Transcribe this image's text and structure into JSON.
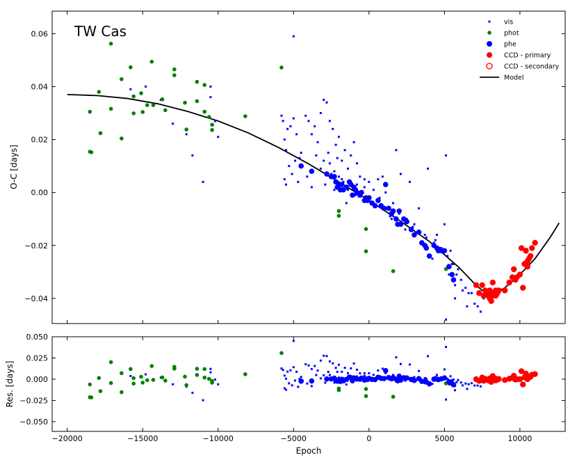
{
  "chart_data": [
    {
      "type": "scatter",
      "panel": "top",
      "title": "TW Cas",
      "xlabel": "",
      "ylabel": "O-C [days]",
      "xlim": [
        -21000,
        13000
      ],
      "ylim": [
        -0.0495,
        0.0685
      ],
      "xticks": [
        -20000,
        -15000,
        -10000,
        -5000,
        0,
        5000,
        10000
      ],
      "yticks": [
        -0.04,
        -0.02,
        0.0,
        0.02,
        0.04,
        0.06
      ],
      "ytick_labels": [
        "−0.04",
        "−0.02",
        "0.00",
        "0.02",
        "0.04",
        "0.06"
      ],
      "legend_position": "top-right",
      "legend": [
        {
          "label": "vis",
          "marker": "small-square",
          "color": "#0000ff"
        },
        {
          "label": "phot",
          "marker": "dot",
          "color": "#008000"
        },
        {
          "label": "phe",
          "marker": "dot",
          "color": "#0000ff"
        },
        {
          "label": "CCD - primary",
          "marker": "dot",
          "color": "#ff0000"
        },
        {
          "label": "CCD - secondary",
          "marker": "open-circle",
          "color": "#ff0000"
        },
        {
          "label": "Model",
          "marker": "line",
          "color": "#000000"
        }
      ],
      "model": {
        "name": "Model",
        "x": [
          -20000,
          -18000,
          -16000,
          -14000,
          -12000,
          -10000,
          -8000,
          -6000,
          -4000,
          -2000,
          0,
          2000,
          4000,
          6000,
          7000,
          7500,
          8000,
          8500,
          9000,
          10000,
          11000,
          12000,
          12600
        ],
        "y": [
          0.037,
          0.0366,
          0.0355,
          0.0335,
          0.0306,
          0.027,
          0.0225,
          0.017,
          0.0108,
          0.004,
          -0.003,
          -0.0105,
          -0.0185,
          -0.0285,
          -0.0345,
          -0.037,
          -0.0378,
          -0.0375,
          -0.036,
          -0.031,
          -0.025,
          -0.017,
          -0.0115
        ]
      },
      "series": [
        {
          "name": "vis",
          "x": [
            -15800,
            -14800,
            -13800,
            -13000,
            -12100,
            -11700,
            -11000,
            -10500,
            -10500,
            -10200,
            -10000,
            -5800,
            -5700,
            -5600,
            -5500,
            -5400,
            -5200,
            -5000,
            -4800,
            -4500,
            -4200,
            -4000,
            -3800,
            -3600,
            -3400,
            -3200,
            -3000,
            -2800,
            -2600,
            -2400,
            -2200,
            -2000,
            -1800,
            -1600,
            -1400,
            -1200,
            -1000,
            -800,
            -600,
            -300,
            -5600,
            -5500,
            -5300,
            -5100,
            -4900,
            -4700,
            -4400,
            -4100,
            -3800,
            -3500,
            -3200,
            -2900,
            -2600,
            -2300,
            -2000,
            -1700,
            -1400,
            -1100,
            -800,
            -500,
            -5000,
            -4600,
            -3000,
            -2700,
            -2500,
            -2100,
            -1500,
            -900,
            -300,
            0,
            300,
            600,
            900,
            1200,
            1500,
            1800,
            2100,
            2400,
            2700,
            3000,
            3300,
            3600,
            3900,
            4200,
            4500,
            4800,
            5100,
            5300,
            5500,
            5700,
            5900,
            6200,
            6500,
            7000,
            7400,
            200,
            700,
            1100,
            1600,
            2000,
            2500,
            2900,
            3400,
            3800,
            4300,
            4700,
            5000,
            5200,
            5400,
            5600,
            5800,
            6100,
            6400,
            6800,
            7200,
            7600,
            -1800,
            -2300,
            500,
            1400,
            2600,
            3700,
            4400,
            5100,
            5700,
            6600
          ],
          "y": [
            0.039,
            0.04,
            0.035,
            0.026,
            0.022,
            0.014,
            0.004,
            0.04,
            0.036,
            0.027,
            0.021,
            0.029,
            0.027,
            0.02,
            0.016,
            0.024,
            0.025,
            0.028,
            0.022,
            0.015,
            0.029,
            0.027,
            0.022,
            0.025,
            0.019,
            0.03,
            0.035,
            0.034,
            0.027,
            0.024,
            0.018,
            0.021,
            0.012,
            0.016,
            0.009,
            0.014,
            0.019,
            0.011,
            0.006,
            0.002,
            0.005,
            0.003,
            0.01,
            0.007,
            0.012,
            0.004,
            0.01,
            0.006,
            0.002,
            0.014,
            0.009,
            0.003,
            0.011,
            0.008,
            0.006,
            0.004,
            0.001,
            0.002,
            0.003,
            -0.001,
            0.059,
            0.013,
            0.012,
            0.015,
            0.007,
            0.013,
            -0.004,
            -0.001,
            0.005,
            0.004,
            0.001,
            0.005,
            0.006,
            -0.006,
            -0.01,
            0.016,
            0.007,
            -0.014,
            0.004,
            -0.012,
            -0.006,
            -0.02,
            0.009,
            -0.025,
            -0.016,
            -0.021,
            0.014,
            -0.031,
            -0.027,
            -0.035,
            -0.029,
            -0.037,
            -0.043,
            -0.042,
            -0.045,
            -0.004,
            -0.002,
            0.0,
            -0.004,
            -0.008,
            -0.01,
            -0.013,
            -0.015,
            -0.017,
            -0.019,
            -0.021,
            -0.012,
            -0.024,
            -0.022,
            -0.027,
            -0.031,
            -0.033,
            -0.036,
            -0.038,
            -0.043,
            -0.04,
            0.005,
            0.001,
            -0.005,
            -0.009,
            -0.011,
            -0.016,
            -0.018,
            -0.048,
            -0.04,
            -0.038
          ]
        },
        {
          "name": "phot",
          "x": [
            -18500,
            -18500,
            -18400,
            -17900,
            -17800,
            -17100,
            -17100,
            -16400,
            -16400,
            -15800,
            -15600,
            -15600,
            -15100,
            -15000,
            -14700,
            -14400,
            -14300,
            -13700,
            -13500,
            -12900,
            -12900,
            -12200,
            -12100,
            -11400,
            -11400,
            -10900,
            -10900,
            -10600,
            -10400,
            -10400,
            -8200,
            -5800,
            -2000,
            -2000,
            -200,
            -200,
            1600,
            5100
          ],
          "y": [
            0.0305,
            0.0154,
            0.0152,
            0.038,
            0.0224,
            0.0562,
            0.0316,
            0.0428,
            0.0204,
            0.0473,
            0.0363,
            0.0299,
            0.0375,
            0.0304,
            0.033,
            0.0494,
            0.033,
            0.0352,
            0.0311,
            0.0465,
            0.0443,
            0.0339,
            0.0238,
            0.0418,
            0.0345,
            0.0406,
            0.0305,
            0.0285,
            0.0256,
            0.0236,
            0.0288,
            0.0472,
            -0.007,
            -0.0088,
            -0.0138,
            -0.0222,
            -0.0297,
            -0.0289
          ]
        },
        {
          "name": "phe",
          "x": [
            -4500,
            -3800,
            -2800,
            -2500,
            -2300,
            -2200,
            -2100,
            -2000,
            -1900,
            -1800,
            -1700,
            -1500,
            -1300,
            -1200,
            -1100,
            -1000,
            -900,
            -800,
            -600,
            -500,
            -300,
            -200,
            -100,
            0,
            200,
            400,
            600,
            800,
            1000,
            1100,
            1300,
            1500,
            1600,
            1800,
            1900,
            2000,
            2100,
            2300,
            2500,
            2800,
            3000,
            3300,
            3500,
            3700,
            3800,
            4000,
            4300,
            4500,
            4600,
            4800,
            5000,
            5300,
            5500,
            5600
          ],
          "y": [
            0.01,
            0.008,
            0.007,
            0.006,
            0.006,
            0.004,
            0.002,
            0.003,
            0.001,
            0.003,
            0.001,
            0.002,
            0.004,
            0.003,
            -0.001,
            0.002,
            0.001,
            0.0,
            -0.001,
            0.0,
            -0.003,
            -0.002,
            -0.003,
            -0.002,
            -0.004,
            -0.005,
            -0.003,
            -0.005,
            -0.006,
            0.003,
            -0.006,
            -0.008,
            -0.007,
            -0.01,
            -0.012,
            -0.007,
            -0.012,
            -0.01,
            -0.011,
            -0.014,
            -0.016,
            -0.015,
            -0.019,
            -0.02,
            -0.021,
            -0.024,
            -0.02,
            -0.021,
            -0.022,
            -0.022,
            -0.022,
            -0.028,
            -0.031,
            -0.033
          ]
        },
        {
          "name": "CCD - primary",
          "x": [
            7100,
            7300,
            7500,
            7600,
            7700,
            7800,
            7900,
            8000,
            8000,
            8100,
            8100,
            8200,
            8200,
            8300,
            8400,
            8400,
            8500,
            8600,
            9000,
            9300,
            9500,
            9600,
            9700,
            9800,
            10000,
            10100,
            10200,
            10300,
            10400,
            10500,
            10500,
            10600,
            10700,
            10800,
            11000
          ],
          "y": [
            -0.035,
            -0.038,
            -0.035,
            -0.039,
            -0.037,
            -0.038,
            -0.039,
            -0.04,
            -0.037,
            -0.038,
            -0.041,
            -0.039,
            -0.034,
            -0.038,
            -0.037,
            -0.039,
            -0.038,
            -0.037,
            -0.037,
            -0.034,
            -0.032,
            -0.029,
            -0.033,
            -0.032,
            -0.031,
            -0.021,
            -0.036,
            -0.027,
            -0.022,
            -0.028,
            -0.026,
            -0.025,
            -0.024,
            -0.021,
            -0.019
          ]
        }
      ]
    },
    {
      "type": "scatter",
      "panel": "bottom",
      "title": "",
      "xlabel": "Epoch",
      "ylabel": "Res. [days]",
      "xlim": [
        -21000,
        13000
      ],
      "ylim": [
        -0.0615,
        0.05
      ],
      "xticks": [
        -20000,
        -15000,
        -10000,
        -5000,
        0,
        5000,
        10000
      ],
      "xtick_labels": [
        "−20000",
        "−15000",
        "−10000",
        "−5000",
        "0",
        "5000",
        "10000"
      ],
      "yticks": [
        -0.05,
        -0.025,
        0.0,
        0.025,
        0.05
      ],
      "ytick_labels": [
        "−0.050",
        "−0.025",
        "0.000",
        "0.025",
        "0.050"
      ],
      "reference": "residuals = O-C minus Model for each series above"
    }
  ]
}
